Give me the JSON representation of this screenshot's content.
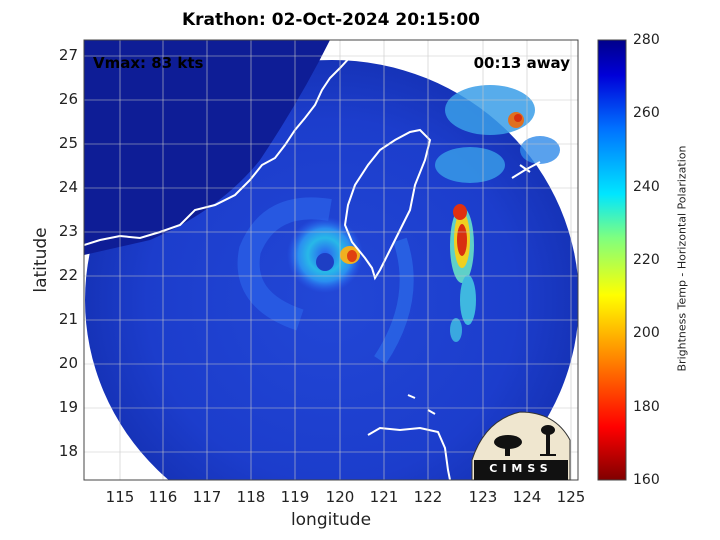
{
  "title": "Krathon: 02-Oct-2024 20:15:00",
  "vmax": "Vmax: 83 kts",
  "time_away": "00:13 away",
  "xlabel": "longitude",
  "ylabel": "latitude",
  "x_ticks": [
    "115",
    "116",
    "117",
    "118",
    "119",
    "120",
    "121",
    "122",
    "123",
    "124",
    "125"
  ],
  "y_ticks": [
    "27",
    "26",
    "25",
    "24",
    "23",
    "22",
    "21",
    "20",
    "19",
    "18"
  ],
  "colorbar": {
    "label": "Brightness Temp - Horizontal Polarization",
    "ticks": [
      "280",
      "260",
      "240",
      "220",
      "200",
      "180",
      "160"
    ]
  },
  "logo_text": "CIMSS",
  "colors": {
    "background_cold_sky": "#1a2fb0",
    "outer_space": "#0c1a8f",
    "coastline": "#ffffff",
    "convection_hot": "#d01010"
  }
}
